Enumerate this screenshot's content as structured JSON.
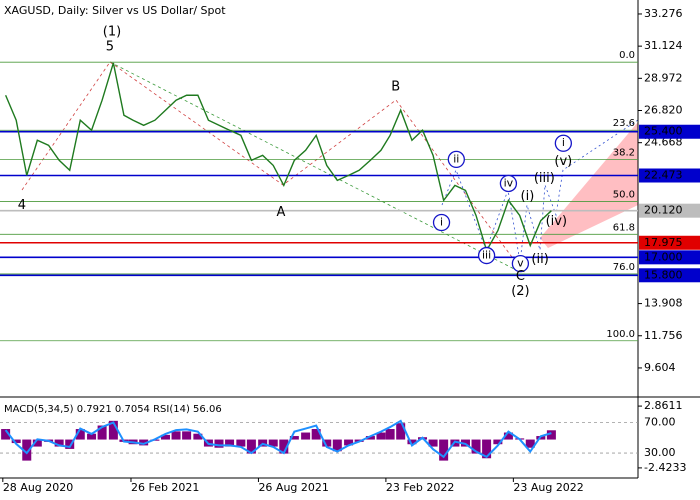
{
  "chart_data": [
    {
      "type": "line",
      "title": "XAGUSD, Daily:  Silver vs US Dollar/ Spot",
      "x": [
        "1 Sep 2020",
        "16 Sep 2020",
        "1 Oct 2020",
        "16 Oct 2020",
        "1 Nov 2020",
        "16 Nov 2020",
        "1 Dec 2020",
        "16 Dec 2020",
        "1 Jan 2021",
        "16 Jan 2021",
        "1 Feb 2021",
        "16 Feb 2021",
        "1 Mar 2021",
        "16 Mar 2021",
        "1 Apr 2021",
        "16 Apr 2021",
        "1 May 2021",
        "16 May 2021",
        "1 Jun 2021",
        "16 Jun 2021",
        "1 Jul 2021",
        "16 Jul 2021",
        "1 Aug 2021",
        "16 Aug 2021",
        "1 Sep 2021",
        "16 Sep 2021",
        "1 Oct 2021",
        "16 Oct 2021",
        "1 Nov 2021",
        "16 Nov 2021",
        "1 Dec 2021",
        "16 Dec 2021",
        "1 Jan 2022",
        "16 Jan 2022",
        "1 Feb 2022",
        "16 Feb 2022",
        "1 Mar 2022",
        "16 Mar 2022",
        "1 Apr 2022",
        "16 Apr 2022",
        "1 May 2022",
        "16 May 2022",
        "1 Jun 2022",
        "16 Jun 2022",
        "1 Jul 2022",
        "16 Jul 2022",
        "1 Aug 2022",
        "16 Aug 2022",
        "1 Sep 2022",
        "16 Sep 2022",
        "1 Oct 2022",
        "16 Oct 2022"
      ],
      "values": [
        27.84,
        26.17,
        22.48,
        24.83,
        24.49,
        23.49,
        22.82,
        26.17,
        25.5,
        27.51,
        30.0,
        26.5,
        26.17,
        25.83,
        26.17,
        26.84,
        27.51,
        27.84,
        27.84,
        26.17,
        25.83,
        25.5,
        25.16,
        23.49,
        23.82,
        23.15,
        21.81,
        23.49,
        24.16,
        25.16,
        23.15,
        22.15,
        22.48,
        22.82,
        23.49,
        24.16,
        25.16,
        26.84,
        24.83,
        25.5,
        23.82,
        20.81,
        21.81,
        21.48,
        19.8,
        17.45,
        18.79,
        20.81,
        19.8,
        17.79,
        19.46,
        20.12
      ],
      "color": "#1f7a1f",
      "xlim": [
        "24 Aug 2020",
        "16 Feb 2023"
      ],
      "xticks": [
        "28 Aug 2020",
        "26 Feb 2021",
        "26 Aug 2021",
        "23 Feb 2022",
        "23 Aug 2022"
      ],
      "ylim": [
        7.727,
        34.21
      ],
      "yticks": [
        33.276,
        31.124,
        28.972,
        {
          "value": 26.82,
          "label": "26.820"
        },
        24.668,
        13.908,
        11.756,
        9.604
      ],
      "price_levels": [
        {
          "value": 25.4,
          "label": "25.400",
          "color": "#0000cc"
        },
        {
          "value": 22.473,
          "label": "22.473",
          "color": "#0000cc"
        },
        {
          "value": 20.12,
          "label": "20.120",
          "color": "#bdbdbd"
        },
        {
          "value": 17.975,
          "label": "17.975",
          "color": "#e00000"
        },
        {
          "value": 17.0,
          "label": "17.000",
          "color": "#0000cc"
        },
        {
          "value": 15.8,
          "label": "15.800",
          "color": "#0000cc"
        }
      ],
      "fib_levels": [
        {
          "label": "0.0",
          "value": 30.05
        },
        {
          "label": "23.6",
          "value": 25.5
        },
        {
          "label": "38.2",
          "value": 23.55
        },
        {
          "label": "50.0",
          "value": 20.74
        },
        {
          "label": "61.8",
          "value": 18.54
        },
        {
          "label": "76.0",
          "value": 15.89
        },
        {
          "label": "100.0",
          "value": 11.42
        }
      ],
      "fib_color": "#4c9a3c",
      "annotations": [
        {
          "text": "(1)",
          "x": "30 Jan 2021",
          "y": 32.07,
          "color": "#3a9a3a"
        },
        {
          "text": "5",
          "x": "27 Jan 2021",
          "y": 31.06,
          "color": "#a03030"
        },
        {
          "text": "4",
          "x": "24 Sep 2020",
          "y": 20.47,
          "color": "#555555"
        },
        {
          "text": "A",
          "x": "27 Sep 2021",
          "y": 20.0,
          "color": "#a03030"
        },
        {
          "text": "B",
          "x": "9 Mar 2022",
          "y": 28.38,
          "color": "#a03030"
        },
        {
          "text": "ii",
          "x": "3 Jun 2022",
          "y": 23.55,
          "color": "#1515c8",
          "style": "circle"
        },
        {
          "text": "i",
          "x": "13 May 2022",
          "y": 19.33,
          "color": "#1515c8",
          "style": "circle"
        },
        {
          "text": "iii",
          "x": "16 Jul 2022",
          "y": 17.12,
          "color": "#1515c8",
          "style": "circle"
        },
        {
          "text": "iv",
          "x": "16 Aug 2022",
          "y": 21.94,
          "color": "#1515c8",
          "style": "circle"
        },
        {
          "text": "v",
          "x": "2 Sep 2022",
          "y": 16.58,
          "color": "#1515c8",
          "style": "circle"
        },
        {
          "text": "C",
          "x": "2 Sep 2022",
          "y": 15.71,
          "color": "#a03030"
        },
        {
          "text": "(2)",
          "x": "2 Sep 2022",
          "y": 14.71,
          "color": "#3a9a3a"
        },
        {
          "text": "(i)",
          "x": "12 Sep 2022",
          "y": 21.07,
          "color": "#e02020"
        },
        {
          "text": "(ii)",
          "x": "30 Sep 2022",
          "y": 16.85,
          "color": "#e02020"
        },
        {
          "text": "(iii)",
          "x": "6 Oct 2022",
          "y": 22.28,
          "color": "#e02020"
        },
        {
          "text": "(iv)",
          "x": "23 Oct 2022",
          "y": 19.4,
          "color": "#e02020"
        },
        {
          "text": "(v)",
          "x": "2 Nov 2022",
          "y": 23.42,
          "color": "#e02020"
        },
        {
          "text": "i",
          "x": "2 Nov 2022",
          "y": 24.63,
          "color": "#1515c8",
          "style": "circle"
        }
      ]
    },
    {
      "type": "bar",
      "title": "MACD(5,34,5) 0.7921 0.7054 RSI(14) 56.06",
      "values": [
        0.9,
        -0.3,
        -1.8,
        -0.6,
        -0.2,
        -0.6,
        -0.8,
        0.9,
        0.5,
        1.2,
        1.6,
        -0.2,
        -0.4,
        -0.5,
        -0.1,
        0.4,
        0.7,
        0.7,
        0.5,
        -0.6,
        -0.7,
        -0.6,
        -0.6,
        -1.2,
        -0.6,
        -0.6,
        -1.2,
        0.3,
        0.6,
        0.9,
        -0.6,
        -1.0,
        -0.5,
        -0.2,
        0.3,
        0.6,
        0.9,
        1.4,
        -0.4,
        0.2,
        -0.6,
        -1.8,
        -0.6,
        -0.6,
        -1.2,
        -1.6,
        -0.4,
        0.6,
        0.1,
        -0.7,
        0.3,
        0.7921
      ],
      "color": "#800080",
      "ylim": [
        -3.116,
        3.467
      ],
      "yticks": [
        2.8611,
        -2.4233
      ],
      "series": [
        {
          "values": [
            60,
            42,
            30,
            48,
            46,
            40,
            38,
            62,
            55,
            64,
            70,
            45,
            44,
            42,
            48,
            55,
            60,
            61,
            58,
            42,
            40,
            40,
            38,
            30,
            42,
            38,
            30,
            58,
            62,
            66,
            38,
            32,
            40,
            45,
            52,
            58,
            64,
            72,
            40,
            50,
            35,
            25,
            45,
            42,
            32,
            25,
            40,
            58,
            48,
            32,
            52,
            56.06
          ],
          "color": "#1e90ff",
          "axis": "y2"
        }
      ],
      "y2lim": [
        0,
        100.7
      ],
      "y2ticks": [
        {
          "value": 70,
          "label": "70.00"
        },
        {
          "value": 30,
          "label": "30.00"
        }
      ]
    }
  ]
}
